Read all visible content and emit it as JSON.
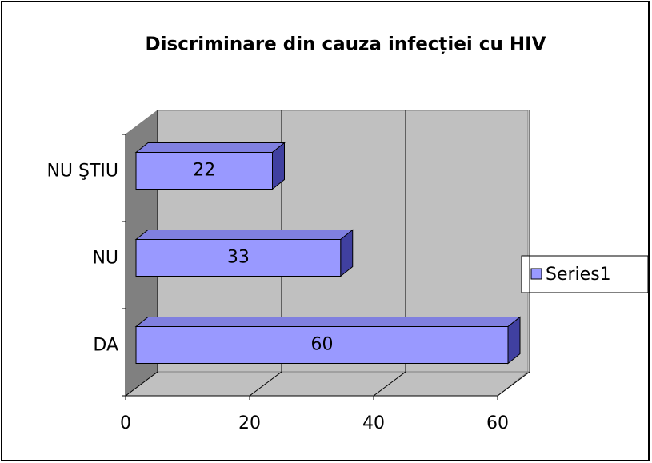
{
  "chart_data": {
    "type": "bar3d_horizontal",
    "title": "Discriminare din cauza infecției cu HIV",
    "categories": [
      "DA",
      "NU",
      "NU ŞTIU"
    ],
    "series": [
      {
        "name": "Series1",
        "color": "#9999ff",
        "values": [
          60,
          33,
          22
        ]
      }
    ],
    "xlim": [
      0,
      60
    ],
    "xticks": [
      0,
      20,
      40,
      60
    ],
    "grid": true,
    "legend": "right"
  }
}
